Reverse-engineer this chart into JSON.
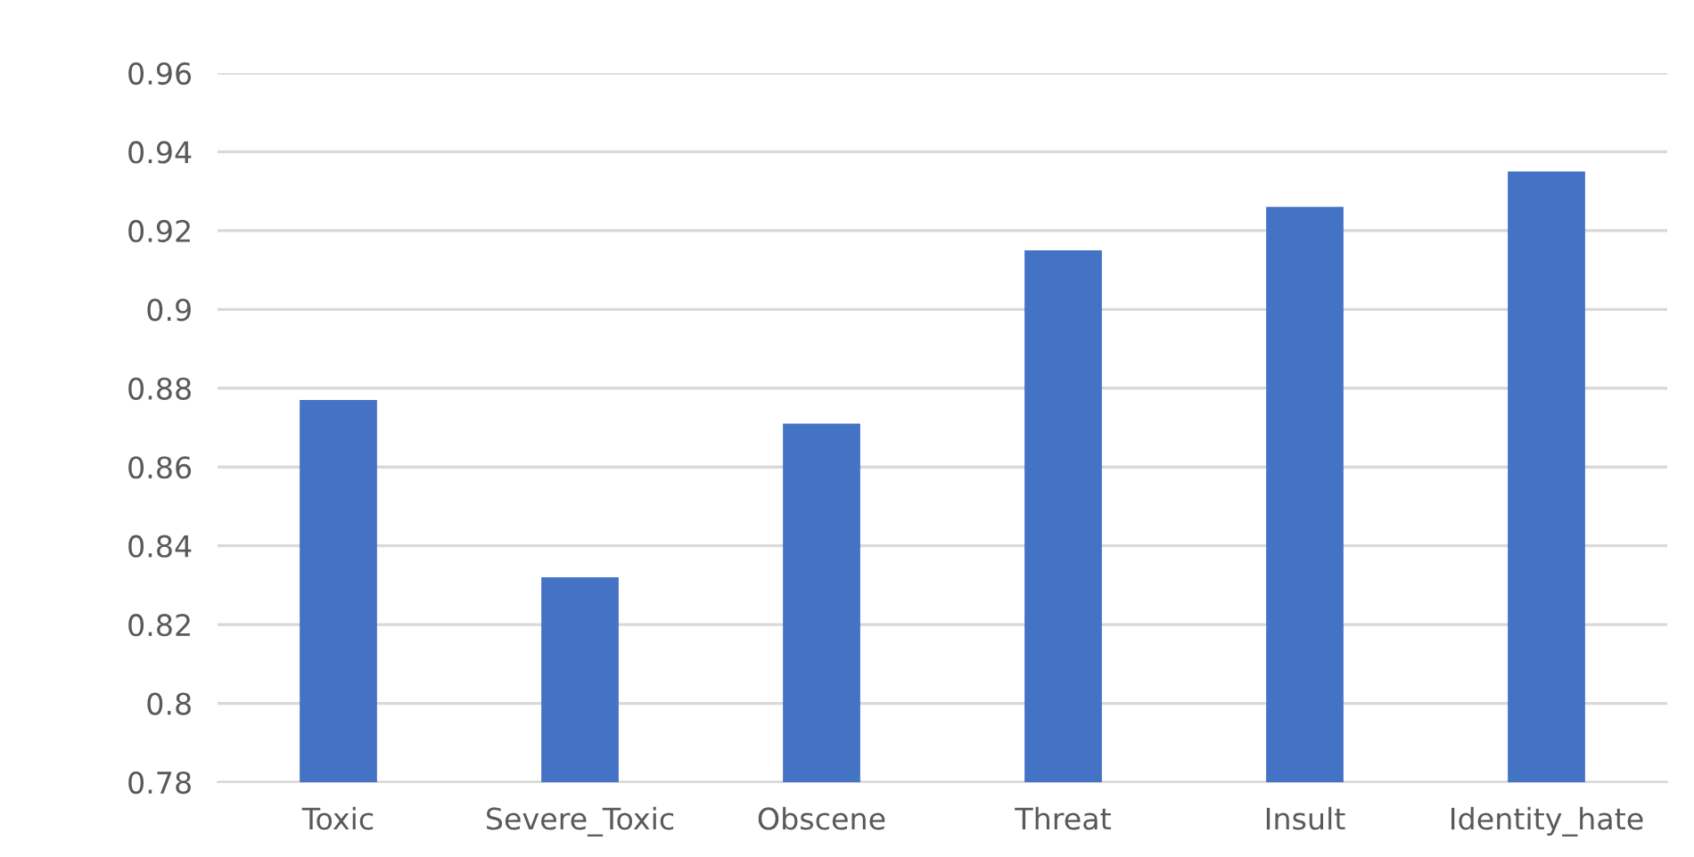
{
  "chart_data": {
    "type": "bar",
    "categories": [
      "Toxic",
      "Severe_Toxic",
      "Obscene",
      "Threat",
      "Insult",
      "Identity_hate"
    ],
    "values": [
      0.877,
      0.832,
      0.871,
      0.915,
      0.926,
      0.935
    ],
    "color": "#4472c4",
    "ylim": [
      0.78,
      0.96
    ],
    "yticks": [
      0.78,
      0.8,
      0.82,
      0.84,
      0.86,
      0.88,
      0.9,
      0.92,
      0.94,
      0.96
    ],
    "grid": "y"
  }
}
